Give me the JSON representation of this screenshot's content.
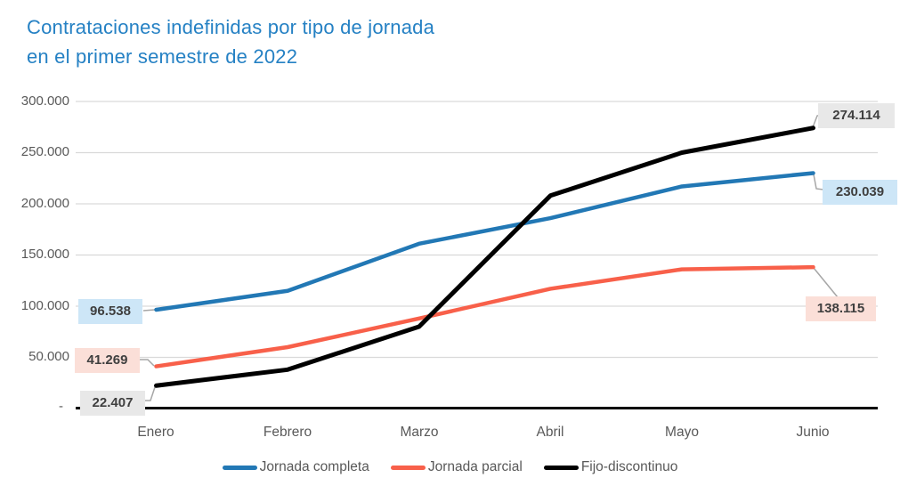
{
  "title": {
    "line1": "Contrataciones indefinidas por tipo de jornada",
    "line2": "en el primer semestre de 2022"
  },
  "colors": {
    "title": "#2581C4",
    "axis_text": "#595959",
    "gridline": "#D9D9D9",
    "axis_line": "#000000",
    "leader_line": "#A6A6A6",
    "callout_text": "#3F3F3F",
    "series_blue": "#2278B5",
    "series_orange": "#F8604A",
    "series_black": "#000000"
  },
  "chart_data": {
    "type": "line",
    "title": "Contrataciones indefinidas por tipo de jornada en el primer semestre de 2022",
    "categories": [
      "Enero",
      "Febrero",
      "Marzo",
      "Abril",
      "Mayo",
      "Junio"
    ],
    "series": [
      {
        "name": "Jornada completa",
        "color": "#2278B5",
        "values": [
          96538,
          115000,
          161000,
          186000,
          217000,
          230039
        ]
      },
      {
        "name": "Jornada parcial",
        "color": "#F8604A",
        "values": [
          41269,
          60000,
          88000,
          117000,
          136000,
          138115
        ]
      },
      {
        "name": "Fijo-discontinuo",
        "color": "#000000",
        "values": [
          22407,
          38000,
          80000,
          208000,
          250000,
          274114
        ]
      }
    ],
    "y_axis": {
      "min": 0,
      "max": 300000,
      "step": 50000,
      "tick_labels": [
        "300.000",
        "250.000",
        "200.000",
        "150.000",
        "100.000",
        "50.000",
        "-"
      ]
    },
    "grid": "horizontal",
    "legend_position": "bottom",
    "callouts": [
      {
        "text": "96.538",
        "series": "Jornada completa",
        "point": "Enero",
        "bg": "#CDE6F7"
      },
      {
        "text": "41.269",
        "series": "Jornada parcial",
        "point": "Enero",
        "bg": "#FBDFD8"
      },
      {
        "text": "22.407",
        "series": "Fijo-discontinuo",
        "point": "Enero",
        "bg": "#E8E8E8"
      },
      {
        "text": "274.114",
        "series": "Fijo-discontinuo",
        "point": "Junio",
        "bg": "#E8E8E8"
      },
      {
        "text": "230.039",
        "series": "Jornada completa",
        "point": "Junio",
        "bg": "#CDE6F7"
      },
      {
        "text": "138.115",
        "series": "Jornada parcial",
        "point": "Junio",
        "bg": "#FBDFD8"
      }
    ]
  }
}
